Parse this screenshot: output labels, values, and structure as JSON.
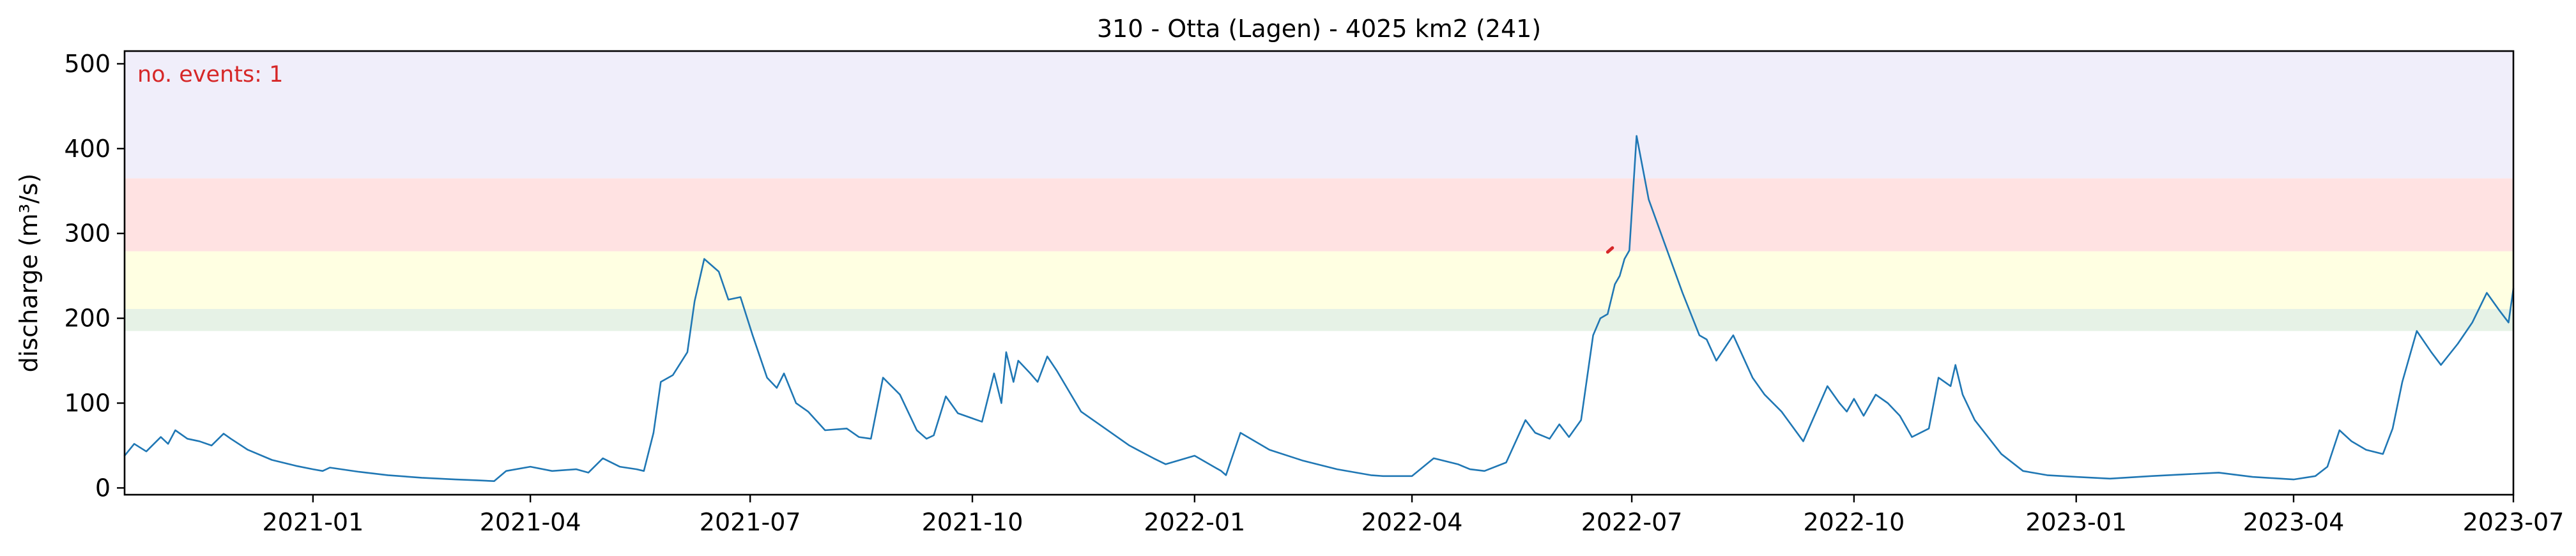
{
  "chart_data": {
    "type": "line",
    "title": "310 - Otta (Lagen) - 4025 km2 (241)",
    "xlabel": "",
    "ylabel": "discharge (m³/s)",
    "annotation": "no. events: 1",
    "xlim": [
      "2020-10-15",
      "2023-07-01"
    ],
    "ylim": [
      -8,
      515
    ],
    "xticks": [
      "2021-01",
      "2021-04",
      "2021-07",
      "2021-10",
      "2022-01",
      "2022-04",
      "2022-07",
      "2022-10",
      "2023-01",
      "2023-04",
      "2023-07"
    ],
    "yticks": [
      0,
      100,
      200,
      300,
      400,
      500
    ],
    "grid": false,
    "bands": [
      {
        "from": 185,
        "to": 211,
        "color": "#e6f2e6"
      },
      {
        "from": 211,
        "to": 279,
        "color": "#ffffe2"
      },
      {
        "from": 279,
        "to": 365,
        "color": "#ffe2e2"
      },
      {
        "from": 365,
        "to": 515,
        "color": "#f0eefa"
      }
    ],
    "series": [
      {
        "color": "#1f77b4",
        "x": [
          "2020-10-15",
          "2020-10-19",
          "2020-10-24",
          "2020-10-30",
          "2020-11-02",
          "2020-11-05",
          "2020-11-10",
          "2020-11-15",
          "2020-11-20",
          "2020-11-25",
          "2020-11-28",
          "2020-12-05",
          "2020-12-15",
          "2020-12-25",
          "2021-01-01",
          "2021-01-05",
          "2021-01-08",
          "2021-01-20",
          "2021-02-01",
          "2021-02-15",
          "2021-03-01",
          "2021-03-10",
          "2021-03-17",
          "2021-03-22",
          "2021-04-01",
          "2021-04-10",
          "2021-04-20",
          "2021-04-25",
          "2021-05-01",
          "2021-05-08",
          "2021-05-15",
          "2021-05-18",
          "2021-05-22",
          "2021-05-25",
          "2021-05-30",
          "2021-06-05",
          "2021-06-08",
          "2021-06-12",
          "2021-06-18",
          "2021-06-22",
          "2021-06-27",
          "2021-07-02",
          "2021-07-08",
          "2021-07-12",
          "2021-07-15",
          "2021-07-20",
          "2021-07-25",
          "2021-08-01",
          "2021-08-10",
          "2021-08-15",
          "2021-08-20",
          "2021-08-25",
          "2021-09-01",
          "2021-09-08",
          "2021-09-12",
          "2021-09-15",
          "2021-09-20",
          "2021-09-25",
          "2021-10-01",
          "2021-10-05",
          "2021-10-08",
          "2021-10-10",
          "2021-10-13",
          "2021-10-15",
          "2021-10-18",
          "2021-10-20",
          "2021-10-25",
          "2021-10-28",
          "2021-11-01",
          "2021-11-05",
          "2021-11-15",
          "2021-11-25",
          "2021-12-05",
          "2021-12-15",
          "2021-12-20",
          "2022-01-01",
          "2022-01-12",
          "2022-01-14",
          "2022-01-20",
          "2022-02-01",
          "2022-02-15",
          "2022-03-01",
          "2022-03-15",
          "2022-03-20",
          "2022-03-25",
          "2022-04-01",
          "2022-04-10",
          "2022-04-20",
          "2022-04-25",
          "2022-05-01",
          "2022-05-10",
          "2022-05-18",
          "2022-05-22",
          "2022-05-28",
          "2022-06-01",
          "2022-06-05",
          "2022-06-10",
          "2022-06-15",
          "2022-06-18",
          "2022-06-21",
          "2022-06-24",
          "2022-06-26",
          "2022-06-28",
          "2022-06-30",
          "2022-07-03",
          "2022-07-08",
          "2022-07-15",
          "2022-07-22",
          "2022-07-29",
          "2022-08-01",
          "2022-08-05",
          "2022-08-12",
          "2022-08-20",
          "2022-08-25",
          "2022-09-01",
          "2022-09-10",
          "2022-09-20",
          "2022-09-25",
          "2022-09-28",
          "2022-10-01",
          "2022-10-05",
          "2022-10-10",
          "2022-10-15",
          "2022-10-20",
          "2022-10-25",
          "2022-11-01",
          "2022-11-05",
          "2022-11-10",
          "2022-11-12",
          "2022-11-15",
          "2022-11-20",
          "2022-12-01",
          "2022-12-10",
          "2022-12-20",
          "2023-01-01",
          "2023-01-15",
          "2023-02-01",
          "2023-02-15",
          "2023-03-01",
          "2023-03-15",
          "2023-04-01",
          "2023-04-10",
          "2023-04-15",
          "2023-04-20",
          "2023-04-25",
          "2023-05-01",
          "2023-05-08",
          "2023-05-12",
          "2023-05-16",
          "2023-05-22",
          "2023-05-28",
          "2023-06-01",
          "2023-06-08",
          "2023-06-14",
          "2023-06-20",
          "2023-06-25",
          "2023-06-29",
          "2023-07-01"
        ],
        "values": [
          38,
          52,
          43,
          60,
          52,
          68,
          58,
          55,
          50,
          64,
          58,
          45,
          33,
          26,
          22,
          20,
          24,
          19,
          15,
          12,
          10,
          9,
          8,
          20,
          25,
          20,
          22,
          18,
          35,
          25,
          22,
          20,
          65,
          125,
          133,
          160,
          220,
          270,
          255,
          222,
          225,
          180,
          130,
          118,
          135,
          100,
          90,
          68,
          70,
          60,
          58,
          130,
          110,
          68,
          58,
          62,
          108,
          88,
          82,
          78,
          112,
          135,
          100,
          160,
          125,
          150,
          135,
          125,
          155,
          138,
          90,
          70,
          50,
          35,
          28,
          38,
          20,
          15,
          65,
          45,
          32,
          22,
          15,
          14,
          14,
          14,
          35,
          28,
          22,
          20,
          30,
          80,
          65,
          58,
          75,
          60,
          80,
          180,
          200,
          205,
          240,
          250,
          270,
          280,
          415,
          340,
          285,
          230,
          180,
          175,
          150,
          180,
          130,
          110,
          90,
          55,
          120,
          100,
          90,
          105,
          85,
          110,
          100,
          85,
          60,
          70,
          130,
          120,
          145,
          110,
          80,
          40,
          20,
          15,
          13,
          11,
          14,
          16,
          18,
          13,
          10,
          14,
          25,
          68,
          55,
          45,
          40,
          70,
          125,
          185,
          160,
          145,
          170,
          195,
          230,
          210,
          195,
          235
        ]
      },
      {
        "color": "#d62728",
        "x": [
          "2022-06-21",
          "2022-06-23"
        ],
        "values": [
          278,
          283
        ]
      }
    ]
  }
}
